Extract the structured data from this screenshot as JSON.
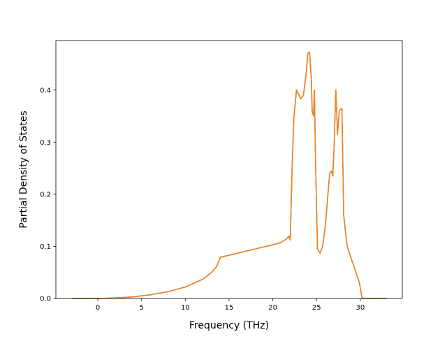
{
  "chart_data": {
    "type": "line",
    "title": "",
    "xlabel": "Frequency (THz)",
    "ylabel": "Partial Density of States",
    "xlim": [
      -4.8,
      34.8
    ],
    "ylim": [
      0.0,
      0.495
    ],
    "xticks": [
      0,
      5,
      10,
      15,
      20,
      25,
      30
    ],
    "yticks": [
      0.0,
      0.1,
      0.2,
      0.3,
      0.4
    ],
    "xtick_labels": [
      "0",
      "5",
      "10",
      "15",
      "20",
      "25",
      "30"
    ],
    "ytick_labels": [
      "0.0",
      "0.1",
      "0.2",
      "0.3",
      "0.4"
    ],
    "grid": false,
    "legend": "none",
    "series": [
      {
        "color": "#1f77b4",
        "x": [
          -3,
          0,
          2,
          4,
          6,
          8,
          10,
          12,
          13,
          13.6,
          14,
          16,
          18,
          20,
          21,
          21.6,
          21.85,
          22.0,
          22.2,
          22.4,
          22.7,
          23.0,
          23.2,
          23.5,
          23.8,
          24.0,
          24.2,
          24.4,
          24.5,
          24.65,
          24.75,
          24.9,
          25.1,
          25.4,
          25.7,
          26.0,
          26.3,
          26.5,
          26.7,
          26.85,
          27.0,
          27.2,
          27.4,
          27.6,
          27.9,
          28.1,
          28.5,
          29.0,
          29.5,
          29.9,
          30.2,
          33
        ],
        "y": [
          0,
          0,
          0.001,
          0.003,
          0.007,
          0.013,
          0.022,
          0.037,
          0.05,
          0.062,
          0.079,
          0.087,
          0.095,
          0.103,
          0.108,
          0.115,
          0.12,
          0.112,
          0.25,
          0.345,
          0.4,
          0.39,
          0.383,
          0.39,
          0.43,
          0.47,
          0.473,
          0.42,
          0.36,
          0.35,
          0.4,
          0.25,
          0.095,
          0.087,
          0.1,
          0.14,
          0.2,
          0.24,
          0.245,
          0.235,
          0.29,
          0.4,
          0.315,
          0.36,
          0.365,
          0.16,
          0.1,
          0.075,
          0.05,
          0.03,
          0,
          0
        ]
      },
      {
        "color": "#ff7f0e",
        "x": [
          -3,
          0,
          2,
          4,
          6,
          8,
          10,
          12,
          13,
          13.6,
          14,
          16,
          18,
          20,
          21,
          21.6,
          21.85,
          22.0,
          22.2,
          22.4,
          22.7,
          23.0,
          23.2,
          23.5,
          23.8,
          24.0,
          24.2,
          24.4,
          24.5,
          24.65,
          24.75,
          24.9,
          25.1,
          25.4,
          25.7,
          26.0,
          26.3,
          26.5,
          26.7,
          26.85,
          27.0,
          27.2,
          27.4,
          27.6,
          27.9,
          28.1,
          28.5,
          29.0,
          29.5,
          29.9,
          30.2,
          33
        ],
        "y": [
          0,
          0,
          0.001,
          0.003,
          0.007,
          0.013,
          0.022,
          0.037,
          0.05,
          0.062,
          0.079,
          0.087,
          0.095,
          0.103,
          0.108,
          0.115,
          0.12,
          0.112,
          0.25,
          0.345,
          0.4,
          0.39,
          0.383,
          0.39,
          0.43,
          0.47,
          0.473,
          0.42,
          0.36,
          0.35,
          0.4,
          0.25,
          0.095,
          0.087,
          0.1,
          0.14,
          0.2,
          0.24,
          0.245,
          0.235,
          0.29,
          0.4,
          0.315,
          0.36,
          0.365,
          0.16,
          0.1,
          0.075,
          0.05,
          0.03,
          0,
          0
        ]
      }
    ]
  }
}
